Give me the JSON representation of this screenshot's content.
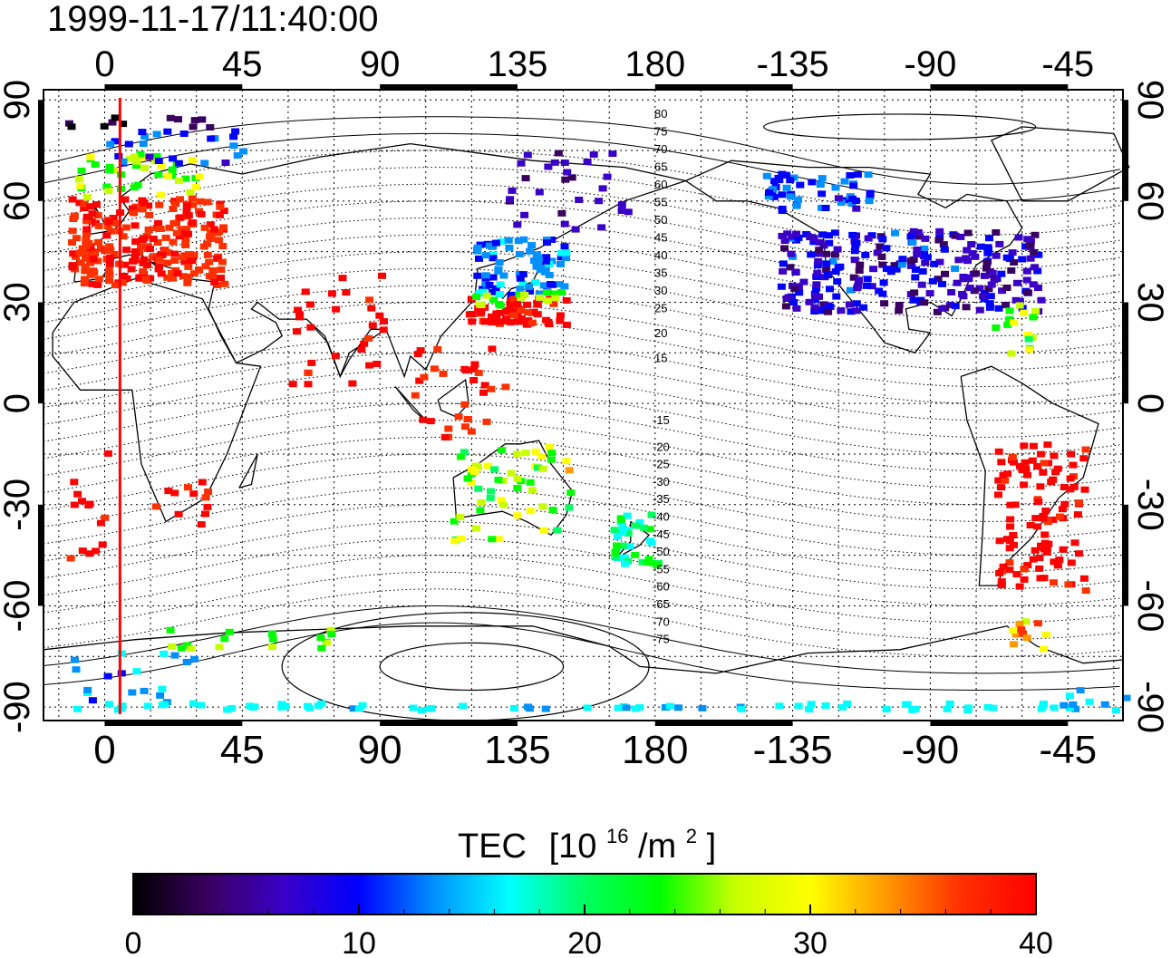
{
  "timestamp": "1999-11-17/11:40:00",
  "map": {
    "lon_ticks_labels": [
      "0",
      "45",
      "90",
      "135",
      "180",
      "-135",
      "-90",
      "-45"
    ],
    "lon_ticks_values": [
      0,
      45,
      90,
      135,
      180,
      225,
      270,
      315
    ],
    "lat_ticks_labels": [
      "90",
      "60",
      "30",
      "0",
      "-30",
      "-60",
      "-90"
    ],
    "lat_ticks_values": [
      90,
      60,
      30,
      0,
      -30,
      -60,
      -90
    ],
    "lon_range": [
      -20,
      333
    ],
    "lat_range": [
      -94,
      93
    ],
    "grid": true,
    "marker_line_lon": 5,
    "marker_line_color": "#ff0000",
    "contour_labels_north": [
      "80",
      "75",
      "70",
      "65",
      "60",
      "55",
      "50",
      "45",
      "40",
      "35",
      "30",
      "25",
      "20",
      "15"
    ],
    "contour_labels_south": [
      "-15",
      "-20",
      "-25",
      "-30",
      "-35",
      "-40",
      "-45",
      "-50",
      "-55",
      "-60",
      "-65",
      "-70",
      "-75"
    ]
  },
  "colorbar": {
    "title": "TEC",
    "unit_prefix": "[10",
    "unit_exp": "16",
    "unit_mid": "/m",
    "unit_exp2": "2",
    "unit_suffix": "]",
    "tick_labels": [
      "0",
      "10",
      "20",
      "30",
      "40"
    ],
    "tick_values": [
      0,
      10,
      20,
      30,
      40
    ],
    "range": [
      0,
      40
    ],
    "colormap": [
      "#000000",
      "#3a0060",
      "#3a00c8",
      "#0000ff",
      "#0090ff",
      "#00ffff",
      "#00ff60",
      "#00ff00",
      "#c8ff00",
      "#ffff00",
      "#ff9900",
      "#ff3000",
      "#ff0000"
    ]
  }
}
